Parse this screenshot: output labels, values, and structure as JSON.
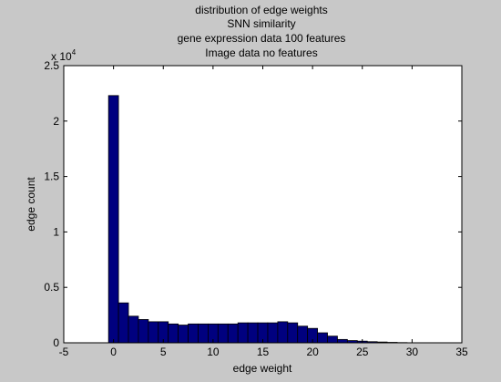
{
  "chart_data": {
    "type": "bar",
    "title_lines": [
      "distribution of edge weights",
      "SNN similarity",
      "gene expression data 100 features",
      "Image data no features"
    ],
    "xlabel": "edge weight",
    "ylabel": "edge count",
    "xlim": [
      -5,
      35
    ],
    "ylim": [
      0,
      25000
    ],
    "x_ticks": [
      -5,
      0,
      5,
      10,
      15,
      20,
      25,
      30,
      35
    ],
    "x_tick_labels": [
      "-5",
      "0",
      "5",
      "10",
      "15",
      "20",
      "25",
      "30",
      "35"
    ],
    "y_ticks": [
      0,
      5000,
      10000,
      15000,
      20000,
      25000
    ],
    "y_tick_labels": [
      "0",
      "0.5",
      "1",
      "1.5",
      "2",
      "2.5"
    ],
    "y_exponent_base": "x 10",
    "y_exponent_power": "4",
    "bar_width": 1,
    "x": [
      0,
      1,
      2,
      3,
      4,
      5,
      6,
      7,
      8,
      9,
      10,
      11,
      12,
      13,
      14,
      15,
      16,
      17,
      18,
      19,
      20,
      21,
      22,
      23,
      24,
      25,
      26,
      27,
      28,
      29
    ],
    "values": [
      22300,
      3600,
      2400,
      2100,
      1900,
      1900,
      1700,
      1600,
      1700,
      1700,
      1700,
      1700,
      1700,
      1800,
      1800,
      1800,
      1800,
      1900,
      1800,
      1500,
      1300,
      900,
      600,
      300,
      200,
      150,
      100,
      70,
      40,
      20
    ],
    "bar_color": "#00007f",
    "bar_edge_color": "#000000",
    "grid": false
  }
}
